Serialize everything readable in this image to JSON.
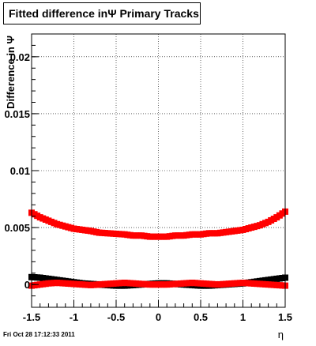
{
  "header": {
    "title": "Fitted difference inΨ  Primary Tracks"
  },
  "footer": {
    "timestamp": "Fri Oct 28 17:12:33 2011"
  },
  "chart_data": {
    "type": "scatter",
    "title": "Fitted difference inΨ  Primary Tracks",
    "xlabel": "η",
    "ylabel": "Difference in Ψ",
    "xlim": [
      -1.5,
      1.5
    ],
    "ylim": [
      -0.002,
      0.022
    ],
    "xticks": [
      -1.5,
      -1,
      -0.5,
      0,
      0.5,
      1,
      1.5
    ],
    "xtick_labels": [
      "-1.5",
      "-1",
      "-0.5",
      "0",
      "0.5",
      "1",
      "1.5"
    ],
    "yticks": [
      0,
      0.005,
      0.01,
      0.015,
      0.02
    ],
    "ytick_labels": [
      "0",
      "0.005",
      "0.01",
      "0.015",
      "0.02"
    ],
    "grid": true,
    "series": [
      {
        "color": "#000000",
        "x": [
          -1.5,
          -1.4,
          -1.3,
          -1.2,
          -1.1,
          -1.0,
          -0.9,
          -0.8,
          -0.7,
          -0.6,
          -0.5,
          -0.4,
          -0.3,
          -0.2,
          -0.1,
          0.0,
          0.1,
          0.2,
          0.3,
          0.4,
          0.5,
          0.6,
          0.7,
          0.8,
          0.9,
          1.0,
          1.1,
          1.2,
          1.3,
          1.4,
          1.5
        ],
        "y": [
          0.00065,
          0.0006,
          0.0005,
          0.0004,
          0.0003,
          0.0002,
          0.0001,
          5e-05,
          0.0,
          -5e-05,
          -0.0001,
          -0.0001,
          -5e-05,
          0.0,
          5e-05,
          0.0001,
          0.0001,
          5e-05,
          0.0,
          -5e-05,
          -0.0001,
          -0.0001,
          -5e-05,
          0.0,
          5e-05,
          0.0001,
          0.0002,
          0.0003,
          0.0004,
          0.0005,
          0.0006
        ]
      },
      {
        "color": "#ff0000",
        "x": [
          -1.5,
          -1.4,
          -1.3,
          -1.2,
          -1.1,
          -1.0,
          -0.9,
          -0.8,
          -0.7,
          -0.6,
          -0.5,
          -0.4,
          -0.3,
          -0.2,
          -0.1,
          0.0,
          0.1,
          0.2,
          0.3,
          0.4,
          0.5,
          0.6,
          0.7,
          0.8,
          0.9,
          1.0,
          1.1,
          1.2,
          1.3,
          1.4,
          1.5
        ],
        "y": [
          0.0063,
          0.0059,
          0.0056,
          0.0053,
          0.0051,
          0.0049,
          0.0048,
          0.0047,
          0.00455,
          0.0045,
          0.00445,
          0.0044,
          0.0043,
          0.0043,
          0.0042,
          0.0042,
          0.0042,
          0.0043,
          0.0043,
          0.0044,
          0.0044,
          0.0045,
          0.0045,
          0.0046,
          0.0047,
          0.0048,
          0.005,
          0.0052,
          0.0055,
          0.0059,
          0.0064
        ]
      },
      {
        "color": "#ff0000",
        "x": [
          -1.5,
          -1.4,
          -1.3,
          -1.2,
          -1.1,
          -1.0,
          -0.9,
          -0.8,
          -0.7,
          -0.6,
          -0.5,
          -0.4,
          -0.3,
          -0.2,
          -0.1,
          0.0,
          0.1,
          0.2,
          0.3,
          0.4,
          0.5,
          0.6,
          0.7,
          0.8,
          0.9,
          1.0,
          1.1,
          1.2,
          1.3,
          1.4,
          1.5
        ],
        "y": [
          -0.0001,
          0.0,
          0.0001,
          0.00015,
          0.0001,
          5e-05,
          0.0,
          -5e-05,
          0.0,
          5e-05,
          0.0001,
          0.00015,
          0.0001,
          5e-05,
          0.0,
          0.0,
          0.0,
          5e-05,
          0.0001,
          0.00015,
          0.0001,
          5e-05,
          0.0,
          5e-05,
          0.0001,
          0.00015,
          0.0001,
          5e-05,
          0.0,
          -5e-05,
          -0.0001
        ]
      }
    ]
  }
}
